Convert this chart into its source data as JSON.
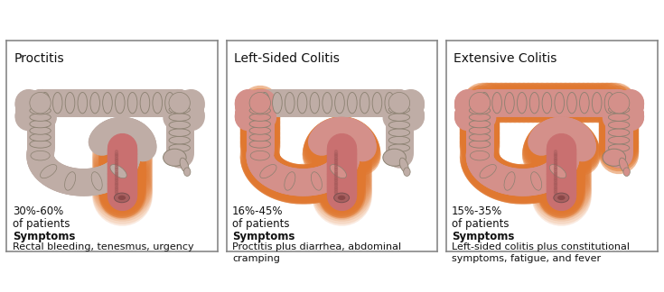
{
  "panels": [
    {
      "title": "Proctitis",
      "percentage": "30%-60%",
      "of_patients": "of patients",
      "symptoms_label": "Symptoms",
      "symptoms_text": "Rectal bleeding, tenesmus, urgency",
      "highlighted_region": "rectum_only"
    },
    {
      "title": "Left-Sided Colitis",
      "percentage": "16%-45%",
      "of_patients": "of patients",
      "symptoms_label": "Symptoms",
      "symptoms_text": "Proctitis plus diarrhea, abdominal\ncramping",
      "highlighted_region": "left_side"
    },
    {
      "title": "Extensive Colitis",
      "percentage": "15%-35%",
      "of_patients": "of patients",
      "symptoms_label": "Symptoms",
      "symptoms_text": "Left-sided colitis plus constitutional\nsymptoms, fatigue, and fever",
      "highlighted_region": "extensive"
    }
  ],
  "background_color": "#ffffff",
  "border_color": "#888888",
  "base_colon_color": "#bfada6",
  "highlight_pink": "#c97070",
  "highlight_light": "#d4908a",
  "orange_glow": "#e07830",
  "text_color": "#111111",
  "title_fontsize": 10,
  "body_fontsize": 8.5
}
